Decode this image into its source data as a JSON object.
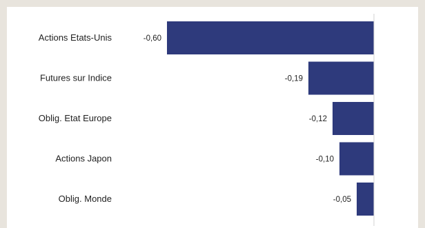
{
  "chart_data": {
    "type": "bar",
    "orientation": "horizontal",
    "categories": [
      "Actions Etats-Unis",
      "Futures sur Indice",
      "Oblig. Etat Europe",
      "Actions Japon",
      "Oblig. Monde"
    ],
    "values": [
      -0.6,
      -0.19,
      -0.12,
      -0.1,
      -0.05
    ],
    "value_labels": [
      "-0,60",
      "-0,19",
      "-0,12",
      "-0,10",
      "-0,05"
    ],
    "xlim": [
      -0.6,
      0
    ],
    "bar_color": "#2e3a7c",
    "grid": false,
    "legend": "none"
  }
}
